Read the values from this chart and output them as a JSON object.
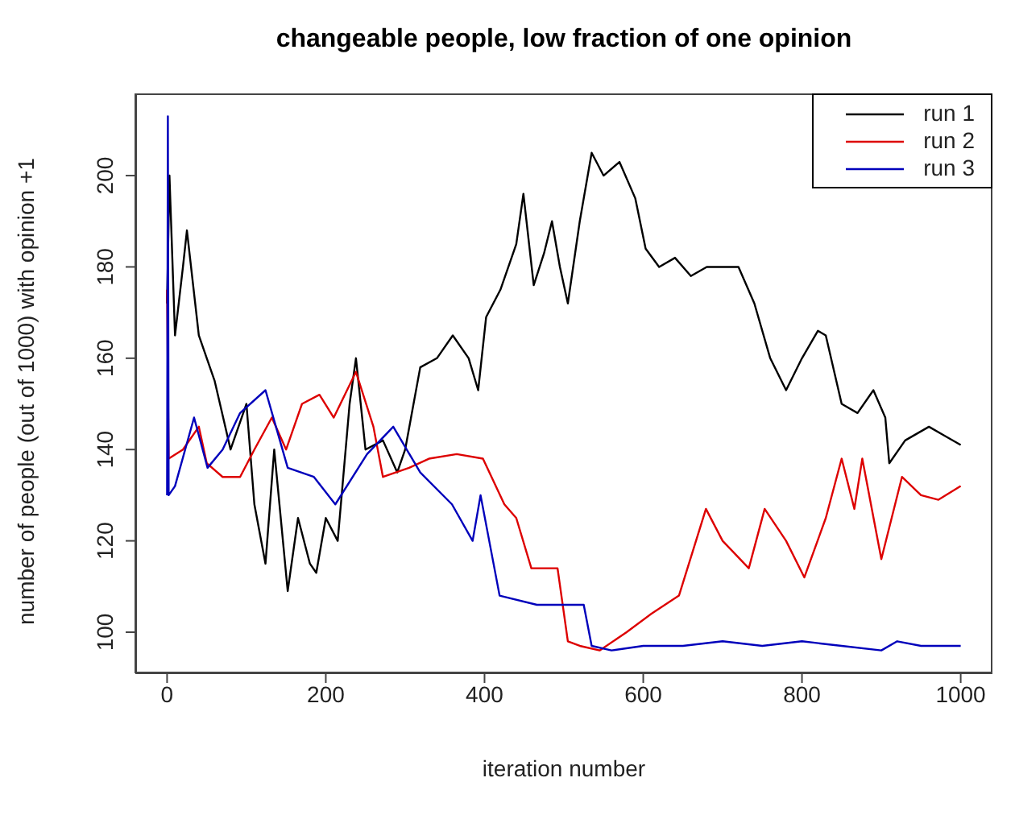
{
  "chart_data": {
    "type": "line",
    "title": "changeable people, low fraction of one opinion",
    "xlabel": "iteration number",
    "ylabel": "number of people (out of 1000) with opinion +1",
    "xlim": [
      -40,
      1040
    ],
    "ylim": [
      91,
      218
    ],
    "xticks": [
      0,
      200,
      400,
      600,
      800,
      1000
    ],
    "yticks": [
      100,
      120,
      140,
      160,
      180,
      200
    ],
    "legend": "top right",
    "marker": "none",
    "line_style": "solid",
    "series": [
      {
        "name": "run 1",
        "color": "#000000",
        "x": [
          0,
          3,
          10,
          20,
          25,
          40,
          60,
          80,
          100,
          110,
          124,
          135,
          152,
          165,
          180,
          188,
          200,
          215,
          230,
          238,
          250,
          272,
          290,
          300,
          319,
          340,
          360,
          380,
          392,
          402,
          420,
          440,
          449,
          462,
          475,
          485,
          495,
          505,
          520,
          535,
          550,
          570,
          590,
          603,
          620,
          640,
          660,
          680,
          700,
          720,
          740,
          760,
          780,
          800,
          820,
          830,
          850,
          870,
          890,
          905,
          910,
          930,
          960,
          980,
          1000
        ],
        "values": [
          172,
          200,
          165,
          180,
          188,
          165,
          155,
          140,
          150,
          128,
          115,
          140,
          109,
          125,
          115,
          113,
          125,
          120,
          150,
          160,
          140,
          142,
          135,
          140,
          158,
          160,
          165,
          160,
          153,
          169,
          175,
          185,
          196,
          176,
          183,
          190,
          180,
          172,
          190,
          205,
          200,
          203,
          195,
          184,
          180,
          182,
          178,
          180,
          180,
          180,
          172,
          160,
          153,
          160,
          166,
          165,
          150,
          148,
          153,
          147,
          137,
          142,
          145,
          143,
          141
        ]
      },
      {
        "name": "run 2",
        "color": "#dd0000",
        "x": [
          0,
          2,
          20,
          40,
          50,
          70,
          92,
          110,
          132,
          150,
          170,
          192,
          210,
          238,
          260,
          272,
          305,
          330,
          365,
          398,
          425,
          440,
          459,
          492,
          505,
          520,
          545,
          579,
          610,
          645,
          679,
          700,
          733,
          753,
          780,
          803,
          830,
          850,
          866,
          876,
          900,
          926,
          950,
          972,
          1000
        ],
        "values": [
          175,
          138,
          140,
          145,
          137,
          134,
          134,
          140,
          147,
          140,
          150,
          152,
          147,
          157,
          145,
          134,
          136,
          138,
          139,
          138,
          128,
          125,
          114,
          114,
          98,
          97,
          96,
          100,
          104,
          108,
          127,
          120,
          114,
          127,
          120,
          112,
          125,
          138,
          127,
          138,
          116,
          134,
          130,
          129,
          132
        ]
      },
      {
        "name": "run 3",
        "color": "#0000bb",
        "x": [
          0,
          1,
          2,
          10,
          34,
          51,
          70,
          92,
          124,
          152,
          185,
          212,
          252,
          285,
          319,
          359,
          385,
          395,
          419,
          466,
          500,
          525,
          535,
          560,
          600,
          650,
          700,
          750,
          800,
          850,
          900,
          920,
          950,
          1000
        ],
        "values": [
          130,
          213,
          130,
          132,
          147,
          136,
          140,
          148,
          153,
          136,
          134,
          128,
          139,
          145,
          135,
          128,
          120,
          130,
          108,
          106,
          106,
          106,
          97,
          96,
          97,
          97,
          98,
          97,
          98,
          97,
          96,
          98,
          97,
          97
        ]
      }
    ]
  }
}
